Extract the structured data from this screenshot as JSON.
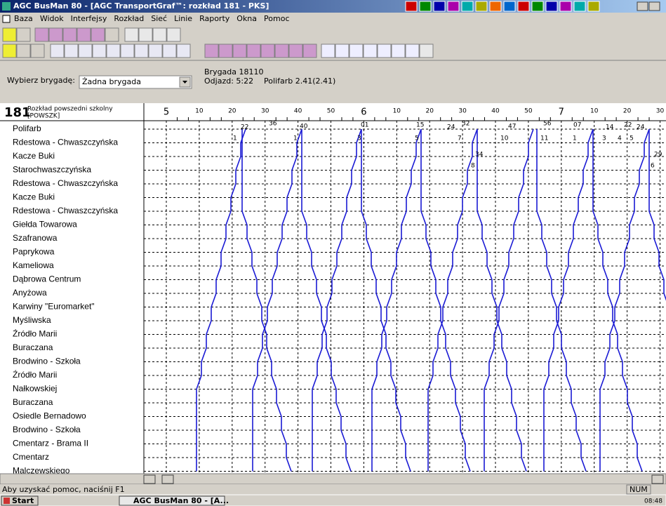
{
  "window_title": "AGC BusMan 80 - [AGC TransportGraf™: rozkład 181 - PKS]",
  "menu": [
    "Baza",
    "Widok",
    "Interfejsy",
    "Rozkład",
    "Sieć",
    "Linie",
    "Raporty",
    "Okna",
    "Pomoc"
  ],
  "brigade_panel": {
    "label": "Wybierz brygadę:",
    "selected": "Żadna brygada",
    "brigade": "Brygada 18110",
    "departure": "Odjazd: 5:22",
    "stop": "Polifarb 2.41(2.41)"
  },
  "timetable": {
    "line": "181",
    "schedule": "Rozkład powszedni szkolny",
    "code": "[POWSZK]",
    "time_labels": [
      "5",
      "10",
      "20",
      "30",
      "40",
      "50",
      "6",
      "10",
      "20",
      "30",
      "40",
      "50",
      "7",
      "10",
      "20",
      "30"
    ],
    "stations": [
      "Polifarb",
      "Rdestowa - Chwaszczyńska",
      "Kacze Buki",
      "Starochwaszczyńska",
      "Rdestowa - Chwaszczyńska",
      "Kacze Buki",
      "Rdestowa - Chwaszczyńska",
      "Giełda Towarowa",
      "Szafranowa",
      "Paprykowa",
      "Kameliowa",
      "Dąbrowa Centrum",
      "Anyżowa",
      "Karwiny \"Euromarket\"",
      "Myśliwska",
      "Źródło Marii",
      "Buraczana",
      "Brodwino - Szkoła",
      "Źródło Marii",
      "Nałkowskiej",
      "Buraczana",
      "Osiedle Bernadowo",
      "Brodwino - Szkoła",
      "Cmentarz - Brama II",
      "Cmentarz",
      "Malczewskiego"
    ],
    "trip_labels": [
      "22",
      "36",
      "40",
      "01",
      "15",
      "24",
      "32",
      "47",
      "56",
      "07",
      "14",
      "22",
      "24",
      "29",
      "34",
      "1",
      "1",
      "3",
      "5",
      "7",
      "10",
      "11",
      "1",
      "3",
      "4",
      "5",
      "8",
      "6"
    ]
  },
  "status": {
    "help": "Aby uzyskać pomoc, naciśnij F1",
    "num": "NUM"
  },
  "taskbar": {
    "start": "Start",
    "task": "AGC BusMan 80 - [A...",
    "clock": "08:48"
  }
}
